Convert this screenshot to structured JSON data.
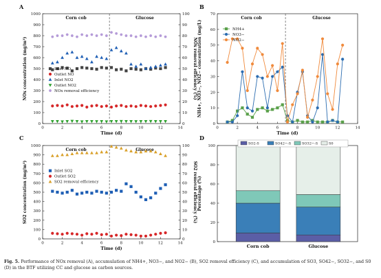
{
  "caption": {
    "lead": "Fig. 5.",
    "text": "Performance of NOx removal (A), accumulation of NH4+, NO3−, and NO2− (B), SO2 removal efficiency (C), and accumulation of SO3, SO42−, SO32−, and S0 (D) in the BTF utilizing CC and glucose as carbon sources."
  },
  "colors": {
    "inlet_no": "#444444",
    "outlet_no": "#d62728",
    "inlet_no2": "#1f5fb5",
    "outlet_no2": "#2ca02c",
    "nox_eff": "#b59bd8",
    "nh4": "#5aa04a",
    "no3": "#2b6cb0",
    "no2": "#f08a3c",
    "inlet_so2": "#1f5fb5",
    "outlet_so2": "#d62728",
    "so2_eff": "#d9a02a",
    "bar_so2s": "#5b5ea6",
    "bar_so4s": "#3a7fb8",
    "bar_so3s": "#7fc8b8",
    "bar_s0": "#e6efe9"
  },
  "chart_data": [
    {
      "panel": "A",
      "type": "scatter",
      "regions": [
        "Corn cob",
        "Glucose"
      ],
      "divider_x": 6.8,
      "xlabel": "Time (d)",
      "ylabel": "NOx concentration (mg/m³)",
      "ylabel_right": "NOx removal efficiency (%)",
      "xlim": [
        0,
        14
      ],
      "ylim": [
        0,
        1000
      ],
      "ylim_right": [
        0,
        100
      ],
      "xticks": [
        0,
        2,
        4,
        6,
        8,
        10,
        12,
        14
      ],
      "yticks": [
        0,
        100,
        200,
        300,
        400,
        500,
        600,
        700,
        800,
        900,
        1000
      ],
      "yticks_right": [
        0,
        10,
        20,
        30,
        40,
        50,
        60,
        70,
        80,
        90,
        100
      ],
      "legend": "left",
      "x": [
        1.0,
        1.5,
        2.0,
        2.5,
        3.0,
        3.5,
        4.0,
        4.5,
        5.0,
        5.5,
        6.0,
        6.5,
        7.0,
        7.5,
        8.0,
        8.5,
        9.0,
        9.5,
        10.0,
        10.5,
        11.0,
        11.5,
        12.0,
        12.5
      ],
      "series": [
        {
          "name": "Inlet NO",
          "marker": "square",
          "axis": "left",
          "color_key": "inlet_no",
          "values": [
            490,
            500,
            510,
            505,
            480,
            500,
            510,
            505,
            500,
            495,
            510,
            505,
            510,
            490,
            495,
            480,
            500,
            495,
            490,
            500,
            495,
            505,
            500,
            510
          ]
        },
        {
          "name": "Outlet NO",
          "marker": "circle",
          "axis": "left",
          "color_key": "outlet_no",
          "values": [
            160,
            165,
            160,
            170,
            155,
            160,
            165,
            150,
            160,
            165,
            155,
            160,
            150,
            160,
            165,
            155,
            160,
            155,
            165,
            160,
            155,
            160,
            165,
            170
          ]
        },
        {
          "name": "Inlet NO2",
          "marker": "triangle-up",
          "axis": "left",
          "color_key": "inlet_no2",
          "values": [
            550,
            560,
            600,
            640,
            650,
            600,
            610,
            590,
            560,
            610,
            600,
            590,
            670,
            690,
            660,
            640,
            540,
            520,
            540,
            500,
            510,
            520,
            530,
            540
          ]
        },
        {
          "name": "Outlet NO2",
          "marker": "triangle-down",
          "axis": "left",
          "color_key": "outlet_no2",
          "values": [
            20,
            20,
            18,
            20,
            22,
            20,
            18,
            20,
            20,
            19,
            20,
            18,
            20,
            20,
            21,
            20,
            20,
            19,
            20,
            20,
            21,
            20,
            20,
            20
          ]
        },
        {
          "name": "NOx removal efficiency",
          "marker": "hexagon",
          "axis": "right",
          "color_key": "nox_eff",
          "values": [
            79,
            80,
            80,
            81,
            80,
            79,
            81,
            80,
            81,
            80,
            81,
            80,
            83,
            82,
            81,
            80,
            80,
            79,
            80,
            79,
            80,
            79,
            80,
            79
          ]
        }
      ]
    },
    {
      "panel": "B",
      "type": "line",
      "regions": [
        "Corn cob",
        "Glucose"
      ],
      "divider_x": 6.8,
      "xlabel": "Time (d)",
      "ylabel": "NH4+, NO3−, NO2− concentration (mg/L)",
      "xlim": [
        0,
        14
      ],
      "ylim": [
        0,
        70
      ],
      "xticks": [
        0,
        2,
        4,
        6,
        8,
        10,
        12,
        14
      ],
      "yticks": [
        0,
        10,
        20,
        30,
        40,
        50,
        60,
        70
      ],
      "legend": "top-left",
      "series": [
        {
          "name": "NH4+",
          "marker": "square",
          "color_key": "nh4",
          "x": [
            1.0,
            1.5,
            2.0,
            2.5,
            3.0,
            3.5,
            4.0,
            4.5,
            5.0,
            5.5,
            6.0,
            6.5,
            7.0,
            7.5,
            8.0,
            8.5,
            9.0,
            9.5,
            10.0,
            10.5,
            11.0,
            11.5,
            12.0,
            12.5
          ],
          "values": [
            1,
            2,
            8,
            10,
            6,
            4,
            9,
            10,
            8,
            9,
            10,
            12,
            2,
            1,
            2,
            1,
            1,
            2,
            1,
            1,
            1,
            2,
            1,
            1
          ]
        },
        {
          "name": "NO3−",
          "marker": "circle",
          "color_key": "no3",
          "x": [
            1.0,
            1.5,
            2.0,
            2.5,
            3.0,
            3.5,
            4.0,
            4.5,
            5.0,
            5.5,
            6.0,
            6.5,
            7.0,
            7.5,
            8.0,
            8.5,
            9.0,
            9.5,
            10.0,
            10.5,
            11.0,
            11.5,
            12.0,
            12.5
          ],
          "values": [
            1,
            1,
            5,
            33,
            10,
            8,
            30,
            29,
            10,
            30,
            33,
            36,
            5,
            1,
            20,
            33,
            5,
            1,
            10,
            44,
            1,
            2,
            1,
            41
          ]
        },
        {
          "name": "NO2−",
          "marker": "circle",
          "color_key": "no2",
          "x": [
            1.0,
            1.5,
            2.0,
            2.5,
            3.0,
            3.5,
            4.0,
            4.5,
            5.0,
            5.5,
            6.0,
            6.5,
            7.0,
            7.5,
            8.0,
            8.5,
            9.0,
            9.5,
            10.0,
            10.5,
            11.0,
            11.5,
            12.0,
            12.5
          ],
          "values": [
            39,
            54,
            54,
            48,
            21,
            38,
            48,
            44,
            30,
            37,
            21,
            51,
            1,
            12,
            19,
            34,
            4,
            15,
            30,
            54,
            19,
            9,
            38,
            50
          ]
        }
      ]
    },
    {
      "panel": "C",
      "type": "scatter",
      "regions": [
        "Corn cob",
        "Glucose"
      ],
      "divider_x": 6.8,
      "xlabel": "Time (d)",
      "ylabel": "SO2 concentration (mg/m³)",
      "ylabel_right": "SO2 removal efficiency (%)",
      "xlim": [
        0,
        14
      ],
      "ylim": [
        0,
        1000
      ],
      "ylim_right": [
        0,
        100
      ],
      "xticks": [
        0,
        2,
        4,
        6,
        8,
        10,
        12,
        14
      ],
      "yticks": [
        0,
        100,
        200,
        300,
        400,
        500,
        600,
        700,
        800,
        900,
        1000
      ],
      "yticks_right": [
        0,
        10,
        20,
        30,
        40,
        50,
        60,
        70,
        80,
        90,
        100
      ],
      "legend": "left",
      "x": [
        1.0,
        1.5,
        2.0,
        2.5,
        3.0,
        3.5,
        4.0,
        4.5,
        5.0,
        5.5,
        6.0,
        6.5,
        7.0,
        7.5,
        8.0,
        8.5,
        9.0,
        9.5,
        10.0,
        10.5,
        11.0,
        11.5,
        12.0,
        12.5
      ],
      "series": [
        {
          "name": "Inlet SO2",
          "marker": "square",
          "axis": "left",
          "color_key": "inlet_so2",
          "values": [
            510,
            500,
            490,
            500,
            520,
            480,
            490,
            500,
            490,
            510,
            500,
            490,
            500,
            520,
            510,
            590,
            560,
            500,
            450,
            420,
            440,
            490,
            540,
            580
          ]
        },
        {
          "name": "Outlet SO2",
          "marker": "circle",
          "axis": "left",
          "color_key": "outlet_so2",
          "values": [
            60,
            55,
            50,
            60,
            55,
            50,
            40,
            55,
            50,
            60,
            45,
            50,
            30,
            40,
            35,
            50,
            45,
            40,
            30,
            30,
            40,
            50,
            60,
            65
          ]
        },
        {
          "name": "SO2 removal efficiency",
          "marker": "triangle-up",
          "axis": "right",
          "color_key": "so2_eff",
          "values": [
            89,
            89,
            90,
            90,
            91,
            92,
            92,
            92,
            92,
            92,
            93,
            93,
            99,
            98,
            97,
            95,
            94,
            93,
            93,
            94,
            94,
            93,
            91,
            89
          ]
        }
      ]
    },
    {
      "panel": "D",
      "type": "bar",
      "stacked": true,
      "categories": [
        "Corn cob",
        "Glucose"
      ],
      "ylabel": "Percentage (%)",
      "ylim": [
        0,
        100
      ],
      "yticks": [
        0,
        20,
        40,
        60,
        80,
        100
      ],
      "legend": "top",
      "series": [
        {
          "name": "SO2-S",
          "color_key": "bar_so2s",
          "values": [
            9,
            7
          ]
        },
        {
          "name": "SO42−-S",
          "color_key": "bar_so4s",
          "values": [
            31,
            29
          ]
        },
        {
          "name": "SO32−-S",
          "color_key": "bar_so3s",
          "values": [
            13,
            13
          ]
        },
        {
          "name": "S0",
          "color_key": "bar_s0",
          "values": [
            47,
            51
          ]
        }
      ]
    }
  ]
}
